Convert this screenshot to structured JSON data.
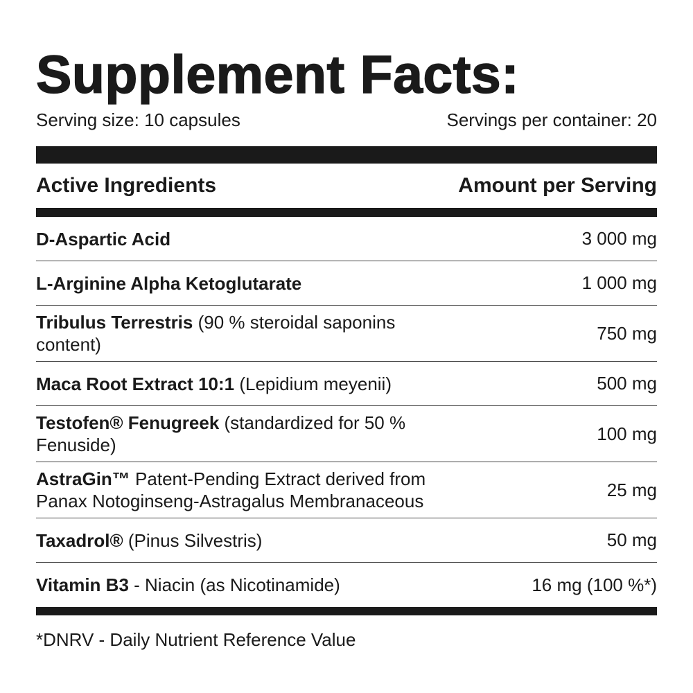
{
  "header": {
    "title": "Supplement Facts:",
    "serving_size": "Serving size: 10 capsules",
    "servings_per_container": "Servings per container: 20"
  },
  "table": {
    "columns": [
      "Active Ingredients",
      "Amount per Serving"
    ],
    "rows": [
      {
        "name": "D-Aspartic Acid",
        "amount": "3 000 mg"
      },
      {
        "name": "L-Arginine Alpha Ketoglutarate",
        "amount": "1 000 mg"
      },
      {
        "name": "Tribulus Terrestris",
        "detail": "(90 % steroidal saponins content)",
        "amount": "750 mg"
      },
      {
        "name": "Maca Root Extract 10:1",
        "detail": "(Lepidium meyenii)",
        "amount": "500 mg"
      },
      {
        "name": "Testofen® Fenugreek",
        "detail": "(standardized for 50 % Fenuside)",
        "amount": "100 mg"
      },
      {
        "name": "AstraGin™",
        "detail": "Patent-Pending Extract derived from Panax Notoginseng-Astragalus Membranaceous",
        "amount": "25 mg"
      },
      {
        "name": "Taxadrol®",
        "detail": "(Pinus Silvestris)",
        "amount": "50 mg"
      },
      {
        "name": "Vitamin B3",
        "detail": "- Niacin (as Nicotinamide)",
        "amount": "16 mg (100 %*)"
      }
    ]
  },
  "footnote": "*DNRV - Daily Nutrient Reference Value"
}
